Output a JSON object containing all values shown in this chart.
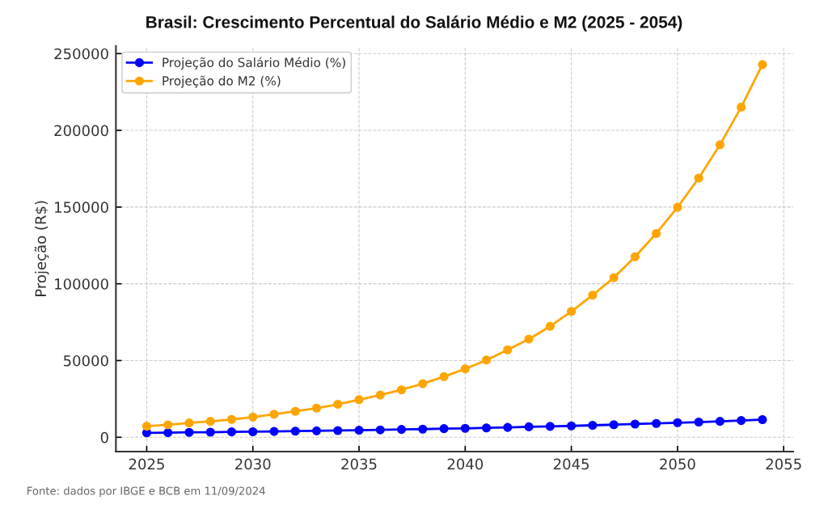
{
  "chart_data": {
    "type": "line",
    "title": "Brasil: Crescimento Percentual do Salário Médio e M2 (2025 - 2054)",
    "ylabel": "Projeção (R$)",
    "x": [
      2025,
      2026,
      2027,
      2028,
      2029,
      2030,
      2031,
      2032,
      2033,
      2034,
      2035,
      2036,
      2037,
      2038,
      2039,
      2040,
      2041,
      2042,
      2043,
      2044,
      2045,
      2046,
      2047,
      2048,
      2049,
      2050,
      2051,
      2052,
      2053,
      2054
    ],
    "series": [
      {
        "name": "Projeção do Salário Médio (%)",
        "color": "#0000ff",
        "values": [
          2900,
          3000,
          3200,
          3300,
          3500,
          3600,
          3800,
          4000,
          4200,
          4400,
          4600,
          4800,
          5100,
          5300,
          5600,
          5800,
          6100,
          6400,
          6800,
          7100,
          7400,
          7800,
          8200,
          8600,
          9000,
          9500,
          9900,
          10400,
          10900,
          11500
        ]
      },
      {
        "name": "Projeção do M2 (%)",
        "color": "#ffa500",
        "values": [
          7200,
          8100,
          9300,
          10400,
          11600,
          13200,
          15000,
          16900,
          19000,
          21500,
          24500,
          27500,
          30900,
          34900,
          39500,
          44600,
          50300,
          57000,
          64000,
          72300,
          82000,
          92600,
          104000,
          117600,
          132800,
          149900,
          168900,
          190600,
          215100,
          242900
        ]
      }
    ],
    "xlim": [
      2023.55,
      2055.45
    ],
    "ylim": [
      -9300,
      255000
    ],
    "xticks": [
      2025,
      2030,
      2035,
      2040,
      2045,
      2050,
      2055
    ],
    "yticks": [
      0,
      50000,
      100000,
      150000,
      200000,
      250000
    ],
    "grid": true,
    "legend": "top left",
    "marker": "circle",
    "line_style": "solid",
    "annotations": [
      "Fonte: dados por IBGE e BCB em 11/09/2024"
    ]
  }
}
